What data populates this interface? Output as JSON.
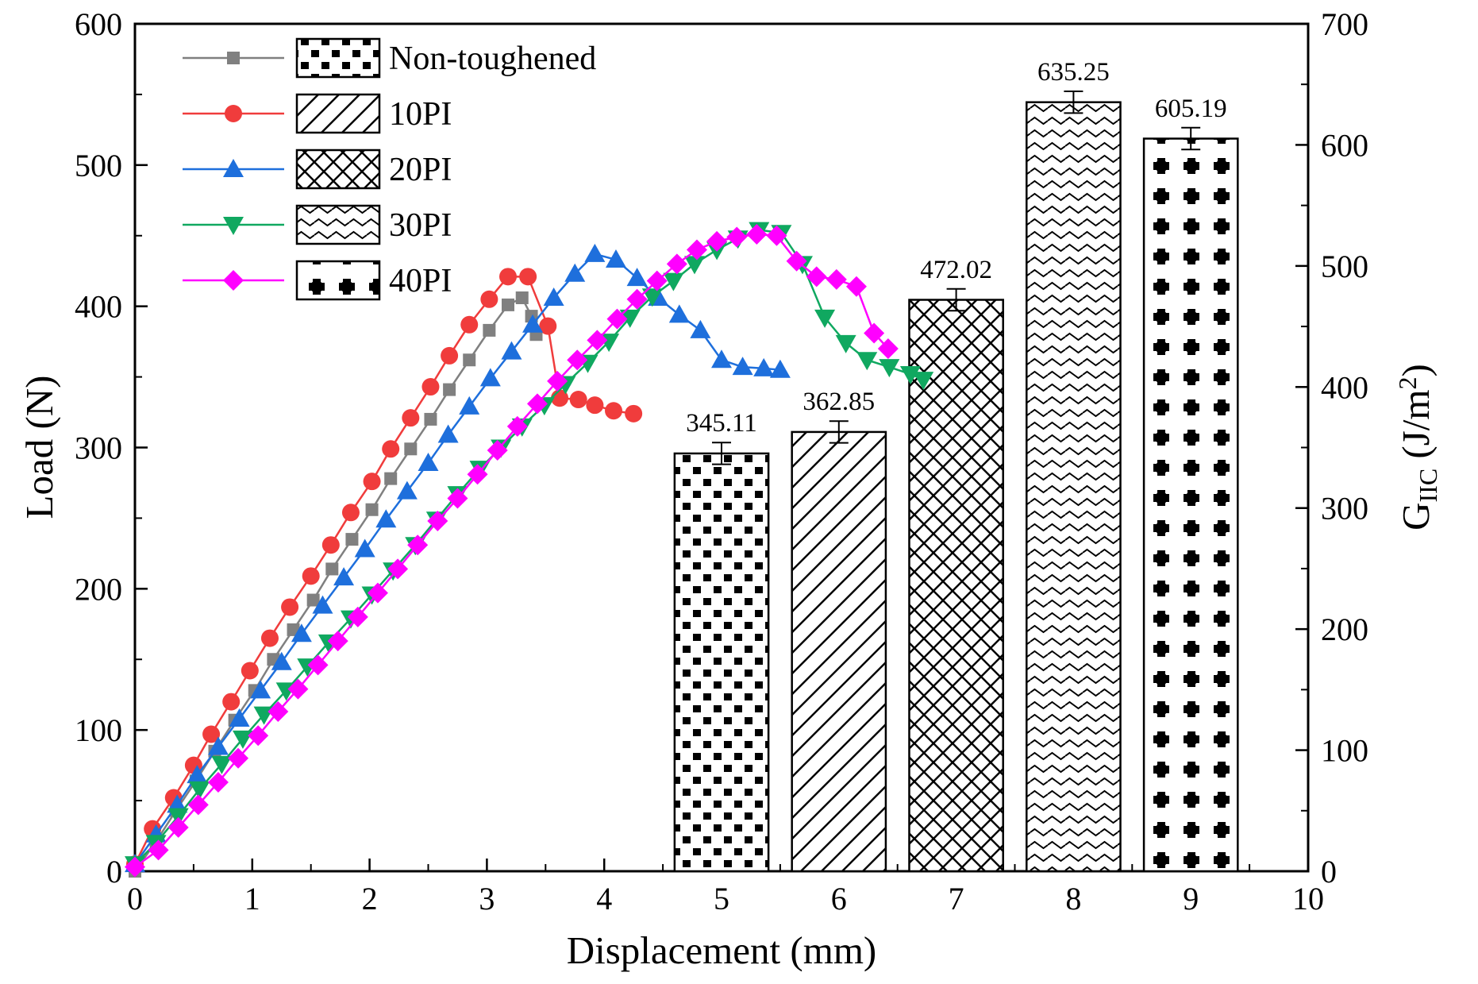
{
  "chart_data": {
    "type": "line+bar",
    "x_axis": {
      "label": "Displacement (mm)",
      "range": [
        0,
        10
      ],
      "ticks": [
        "0",
        "1",
        "2",
        "3",
        "4",
        "5",
        "6",
        "7",
        "8",
        "9",
        "10"
      ]
    },
    "y_left": {
      "label": "Load (N)",
      "range": [
        0,
        600
      ],
      "ticks": [
        "0",
        "100",
        "200",
        "300",
        "400",
        "500",
        "600"
      ]
    },
    "y_right": {
      "label_main": "G",
      "label_sub": "IIC",
      "label_units": " (J/m",
      "label_sup": "2",
      "label_close": ")",
      "range": [
        0,
        700
      ],
      "ticks": [
        "0",
        "100",
        "200",
        "300",
        "400",
        "500",
        "600",
        "700"
      ]
    },
    "legend": {
      "position": "top-left",
      "entries": [
        {
          "label": "Non-toughened",
          "color": "#808080",
          "marker": "square",
          "pattern": "brick"
        },
        {
          "label": "10PI",
          "color": "#f03c3c",
          "marker": "circle",
          "pattern": "diagonal"
        },
        {
          "label": "20PI",
          "color": "#1e6fdc",
          "marker": "triangle-up",
          "pattern": "crosshatch"
        },
        {
          "label": "30PI",
          "color": "#10a860",
          "marker": "triangle-down",
          "pattern": "wave"
        },
        {
          "label": "40PI",
          "color": "#ff00ff",
          "marker": "diamond",
          "pattern": "cross-dots"
        }
      ]
    },
    "series": [
      {
        "name": "Non-toughened",
        "x": [
          0.0,
          0.18,
          0.35,
          0.52,
          0.68,
          0.85,
          1.02,
          1.18,
          1.35,
          1.52,
          1.68,
          1.85,
          2.02,
          2.18,
          2.35,
          2.52,
          2.68,
          2.85,
          3.02,
          3.18,
          3.3,
          3.38,
          3.42
        ],
        "y": [
          0,
          21,
          43,
          64,
          85,
          107,
          128,
          150,
          171,
          192,
          214,
          235,
          256,
          278,
          299,
          320,
          341,
          362,
          383,
          401,
          406,
          393,
          380
        ]
      },
      {
        "name": "10PI",
        "x": [
          0.0,
          0.15,
          0.33,
          0.5,
          0.65,
          0.82,
          0.98,
          1.15,
          1.32,
          1.5,
          1.67,
          1.84,
          2.02,
          2.18,
          2.35,
          2.52,
          2.68,
          2.85,
          3.02,
          3.18,
          3.35,
          3.52,
          3.62,
          3.78,
          3.92,
          4.08,
          4.25
        ],
        "y": [
          5,
          30,
          52,
          75,
          97,
          120,
          142,
          165,
          187,
          209,
          231,
          254,
          276,
          299,
          321,
          343,
          365,
          387,
          405,
          421,
          421,
          386,
          335,
          334,
          330,
          326,
          324
        ]
      },
      {
        "name": "20PI",
        "x": [
          0.0,
          0.18,
          0.36,
          0.53,
          0.71,
          0.89,
          1.07,
          1.25,
          1.42,
          1.6,
          1.78,
          1.96,
          2.14,
          2.32,
          2.5,
          2.67,
          2.85,
          3.03,
          3.21,
          3.39,
          3.57,
          3.75,
          3.92,
          4.1,
          4.28,
          4.46,
          4.64,
          4.82,
          5.0,
          5.18,
          5.36,
          5.5
        ],
        "y": [
          5,
          26,
          47,
          68,
          88,
          108,
          128,
          148,
          168,
          188,
          208,
          228,
          249,
          269,
          289,
          309,
          329,
          349,
          368,
          387,
          406,
          423,
          437,
          433,
          420,
          406,
          394,
          383,
          362,
          357,
          356,
          355
        ]
      },
      {
        "name": "30PI",
        "x": [
          0.0,
          0.18,
          0.37,
          0.55,
          0.74,
          0.92,
          1.1,
          1.29,
          1.47,
          1.65,
          1.84,
          2.02,
          2.2,
          2.39,
          2.57,
          2.75,
          2.94,
          3.12,
          3.3,
          3.49,
          3.67,
          3.86,
          4.04,
          4.22,
          4.41,
          4.59,
          4.77,
          4.96,
          5.14,
          5.32,
          5.51,
          5.69,
          5.88,
          6.06,
          6.24,
          6.43,
          6.61,
          6.72
        ],
        "y": [
          5,
          20,
          39,
          58,
          76,
          94,
          111,
          128,
          145,
          162,
          179,
          196,
          213,
          231,
          249,
          267,
          285,
          300,
          315,
          330,
          345,
          360,
          375,
          392,
          407,
          418,
          430,
          440,
          448,
          454,
          452,
          430,
          392,
          374,
          362,
          357,
          352,
          348
        ]
      },
      {
        "name": "40PI",
        "x": [
          0.0,
          0.2,
          0.37,
          0.54,
          0.71,
          0.88,
          1.05,
          1.22,
          1.39,
          1.56,
          1.73,
          1.9,
          2.07,
          2.24,
          2.41,
          2.58,
          2.75,
          2.92,
          3.09,
          3.26,
          3.43,
          3.6,
          3.77,
          3.94,
          4.11,
          4.28,
          4.45,
          4.62,
          4.79,
          4.96,
          5.13,
          5.3,
          5.47,
          5.64,
          5.81,
          5.98,
          6.15,
          6.3,
          6.42
        ],
        "y": [
          3,
          15,
          31,
          47,
          63,
          80,
          96,
          113,
          129,
          146,
          163,
          180,
          197,
          214,
          231,
          248,
          264,
          281,
          298,
          315,
          331,
          347,
          362,
          376,
          391,
          405,
          418,
          430,
          440,
          446,
          449,
          451,
          450,
          432,
          421,
          419,
          414,
          381,
          370
        ]
      }
    ],
    "bars": {
      "axis": "right",
      "positions": [
        5,
        6,
        7,
        8,
        9
      ],
      "labels": [
        "345.11",
        "362.85",
        "472.02",
        "635.25",
        "605.19"
      ],
      "values": [
        345.11,
        362.85,
        472.02,
        635.25,
        605.19
      ],
      "errors": [
        9,
        9,
        9,
        9,
        9
      ],
      "patterns": [
        "brick",
        "diagonal",
        "crosshatch",
        "wave",
        "cross-dots"
      ]
    }
  }
}
